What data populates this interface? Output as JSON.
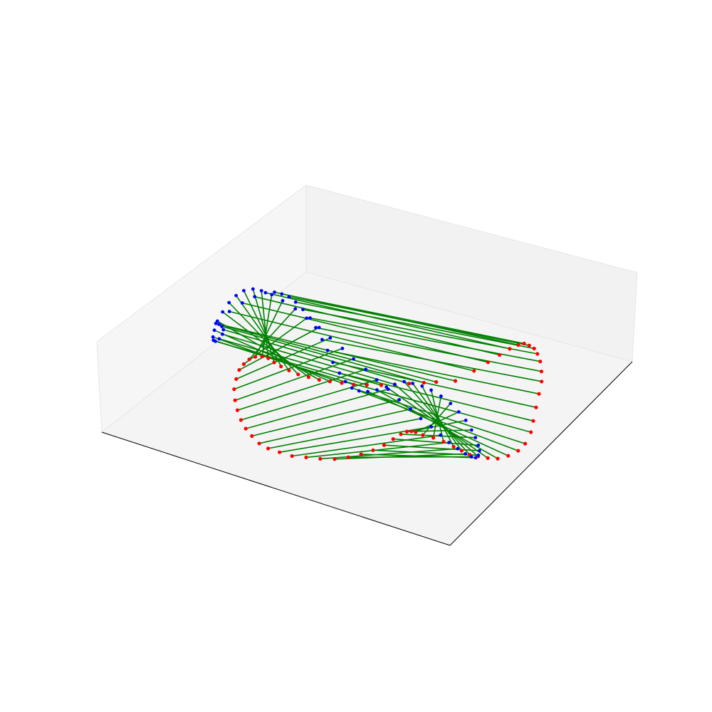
{
  "chart_data": {
    "type": "scatter",
    "projection": "3d",
    "title": "",
    "xlabel": "",
    "ylabel": "",
    "zlabel": "",
    "grid": false,
    "ticks_visible": false,
    "axis_lines": "x-y only",
    "colors": {
      "pane_back": "#f2f2f2",
      "pane_left": "#f6f6f6",
      "pane_floor": "#f4f4f4",
      "pane_edge": "#e6e6e6",
      "axis_line": "#000000",
      "segment": "#008000",
      "source_point": "#ff0000",
      "target_point": "#0000ff"
    },
    "series": [
      {
        "name": "",
        "color": "#ff0000",
        "points": [
          [
            637,
            582
          ],
          [
            652,
            574
          ],
          [
            663,
            567
          ],
          [
            672,
            561
          ],
          [
            680,
            556
          ],
          [
            687,
            553
          ],
          [
            692,
            552
          ],
          [
            697,
            554
          ],
          [
            702,
            557
          ],
          [
            706,
            562
          ],
          [
            710,
            569
          ],
          [
            713,
            578
          ],
          [
            715,
            587
          ],
          [
            715,
            598
          ],
          [
            715,
            610
          ],
          [
            715,
            622
          ],
          [
            715,
            632
          ],
          [
            712,
            642
          ],
          [
            707,
            648
          ],
          [
            699,
            652
          ],
          [
            690,
            654
          ],
          [
            681,
            653
          ],
          [
            672,
            651
          ],
          [
            664,
            649
          ],
          [
            656,
            645
          ],
          [
            648,
            641
          ],
          [
            638,
            636
          ],
          [
            628,
            632
          ],
          [
            618,
            629
          ],
          [
            611,
            626
          ],
          [
            607,
            625
          ],
          [
            603,
            625
          ],
          [
            598,
            627
          ],
          [
            592,
            631
          ],
          [
            585,
            636
          ],
          [
            576,
            640
          ],
          [
            566,
            643
          ],
          [
            555,
            645
          ],
          [
            543,
            646
          ],
          [
            530,
            645
          ],
          [
            517,
            643
          ],
          [
            504,
            641
          ],
          [
            492,
            637
          ],
          [
            481,
            633
          ],
          [
            472,
            628
          ],
          [
            464,
            621
          ],
          [
            457,
            614
          ],
          [
            451,
            606
          ],
          [
            446,
            597
          ],
          [
            442,
            588
          ],
          [
            439,
            578
          ],
          [
            439,
            569
          ],
          [
            440,
            561
          ],
          [
            443,
            556
          ],
          [
            447,
            552
          ],
          [
            452,
            550
          ],
          [
            458,
            550
          ],
          [
            464,
            552
          ],
          [
            470,
            556
          ],
          [
            477,
            560
          ],
          [
            485,
            564
          ],
          [
            494,
            568
          ],
          [
            504,
            571
          ],
          [
            514,
            574
          ],
          [
            524,
            576
          ],
          [
            535,
            578
          ],
          [
            546,
            580
          ],
          [
            558,
            581
          ],
          [
            571,
            582
          ],
          [
            583,
            582
          ],
          [
            596,
            582
          ],
          [
            609,
            582
          ],
          [
            620,
            582
          ]
        ]
      },
      {
        "name": "",
        "color": "#0000ff",
        "points": [
          [
            410,
            518
          ],
          [
            420,
            508
          ],
          [
            430,
            501
          ],
          [
            440,
            496
          ],
          [
            449,
            493
          ],
          [
            457,
            493
          ],
          [
            464,
            495
          ],
          [
            471,
            498
          ],
          [
            478,
            503
          ],
          [
            486,
            510
          ],
          [
            494,
            518
          ],
          [
            501,
            527
          ],
          [
            509,
            538
          ],
          [
            516,
            548
          ],
          [
            523,
            559
          ],
          [
            531,
            569
          ],
          [
            538,
            577
          ],
          [
            545,
            583
          ],
          [
            552,
            586
          ],
          [
            560,
            587
          ],
          [
            568,
            586
          ],
          [
            576,
            584
          ],
          [
            583,
            582
          ],
          [
            591,
            580
          ],
          [
            599,
            582
          ],
          [
            608,
            585
          ],
          [
            617,
            589
          ],
          [
            627,
            595
          ],
          [
            637,
            602
          ],
          [
            646,
            610
          ],
          [
            654,
            618
          ],
          [
            661,
            627
          ],
          [
            666,
            634
          ],
          [
            670,
            641
          ],
          [
            672,
            646
          ],
          [
            672,
            650
          ],
          [
            670,
            652
          ],
          [
            666,
            651
          ],
          [
            660,
            648
          ],
          [
            652,
            643
          ],
          [
            643,
            637
          ],
          [
            634,
            630
          ],
          [
            624,
            622
          ],
          [
            613,
            614
          ],
          [
            602,
            605
          ],
          [
            590,
            596
          ],
          [
            578,
            586
          ],
          [
            566,
            577
          ],
          [
            554,
            567
          ],
          [
            541,
            557
          ],
          [
            529,
            547
          ],
          [
            516,
            537
          ],
          [
            504,
            527
          ],
          [
            491,
            518
          ],
          [
            479,
            509
          ],
          [
            466,
            501
          ],
          [
            455,
            495
          ],
          [
            445,
            491
          ],
          [
            437,
            489
          ],
          [
            429,
            490
          ],
          [
            423,
            494
          ],
          [
            418,
            500
          ],
          [
            414,
            508
          ],
          [
            411,
            516
          ],
          [
            410,
            524
          ],
          [
            410,
            530
          ],
          [
            411,
            533
          ],
          [
            413,
            534
          ],
          [
            416,
            532
          ],
          [
            418,
            528
          ],
          [
            418,
            524
          ],
          [
            416,
            521
          ],
          [
            413,
            519
          ]
        ]
      }
    ]
  }
}
